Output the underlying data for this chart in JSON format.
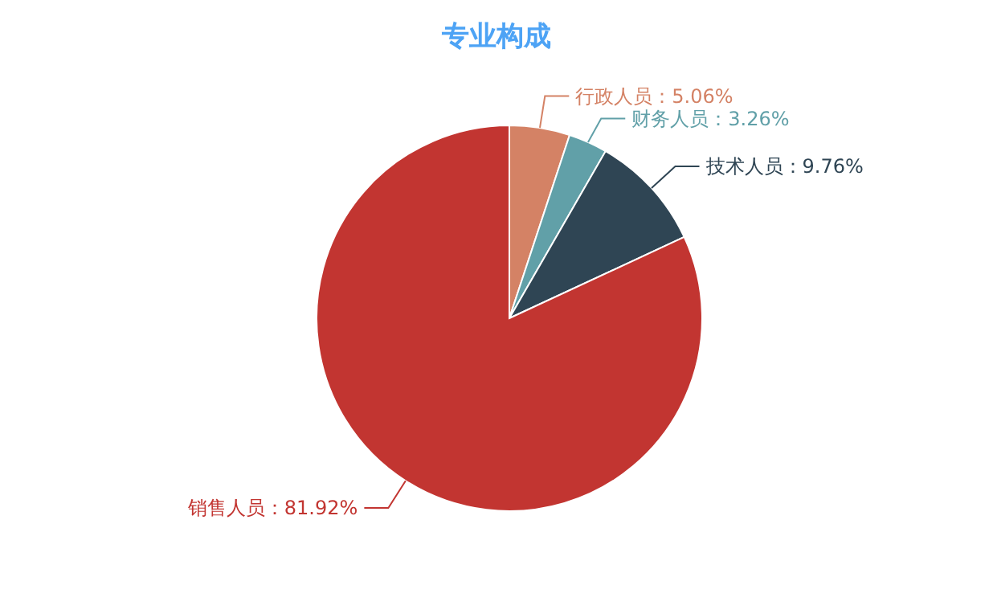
{
  "chart_data": {
    "type": "pie",
    "title": "专业构成",
    "categories": [
      "行政人员",
      "财务人员",
      "技术人员",
      "销售人员"
    ],
    "values": [
      5.06,
      3.26,
      9.76,
      81.92
    ],
    "value_labels": [
      "5.06%",
      "3.26%",
      "9.76%",
      "81.92%"
    ],
    "colors": [
      "#d48265",
      "#61a0a8",
      "#2f4554",
      "#c23531"
    ]
  }
}
